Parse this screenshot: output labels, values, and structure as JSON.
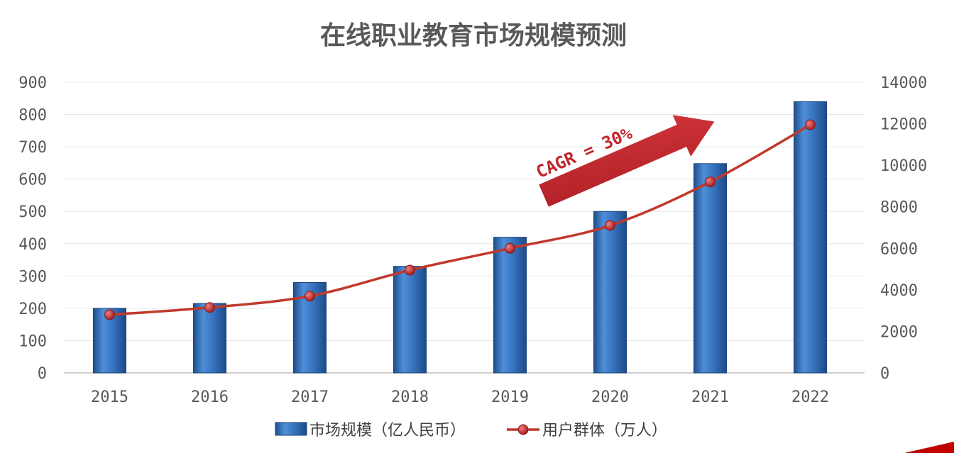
{
  "chart_data": {
    "type": "bar",
    "title": "在线职业教育市场规模预测",
    "categories": [
      "2015",
      "2016",
      "2017",
      "2018",
      "2019",
      "2020",
      "2021",
      "2022"
    ],
    "series": [
      {
        "name": "市场规模（亿人民币）",
        "type": "bar",
        "axis": "left",
        "color": "#2e6fbd",
        "values": [
          200,
          215,
          280,
          330,
          420,
          500,
          648,
          840
        ]
      },
      {
        "name": "用户群体（万人）",
        "type": "line",
        "axis": "right",
        "color": "#c0392b",
        "values": [
          2800,
          3150,
          3700,
          4950,
          6000,
          7100,
          9200,
          11950
        ]
      }
    ],
    "y_left": {
      "ylim": [
        0,
        900
      ],
      "ticks": [
        "0",
        "100",
        "200",
        "300",
        "400",
        "500",
        "600",
        "700",
        "800",
        "900"
      ]
    },
    "y_right": {
      "ylim": [
        0,
        14000
      ],
      "ticks": [
        "0",
        "2000",
        "4000",
        "6000",
        "8000",
        "10000",
        "12000",
        "14000"
      ]
    },
    "grid": true,
    "legend_position": "bottom",
    "annotation": {
      "text": "CAGR = 30%",
      "color": "#c1272d"
    }
  }
}
